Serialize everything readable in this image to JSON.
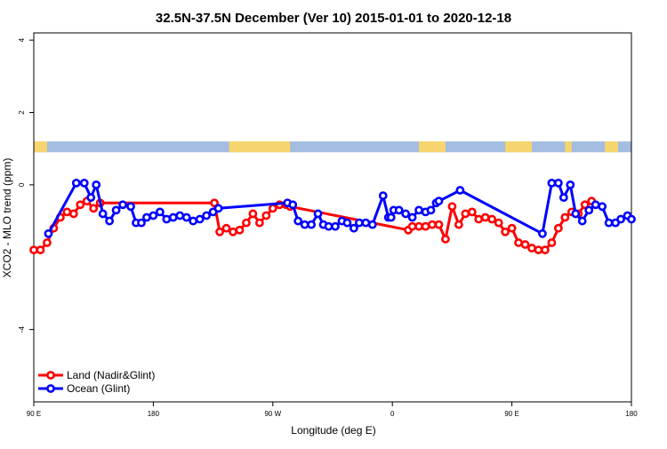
{
  "chart_data": {
    "type": "line",
    "title": "32.5N-37.5N December (Ver 10)   2015-01-01 to 2020-12-18",
    "xlabel": "Longitude (deg E)",
    "ylabel": "XCO2 - MLO trend (ppm)",
    "xlim": [
      90,
      540
    ],
    "ylim": [
      -6,
      4.2
    ],
    "xticks": [
      {
        "value": 90,
        "label": "90 E"
      },
      {
        "value": 180,
        "label": "180"
      },
      {
        "value": 270,
        "label": "90 W"
      },
      {
        "value": 360,
        "label": "0"
      },
      {
        "value": 450,
        "label": "90 E"
      },
      {
        "value": 540,
        "label": "180"
      }
    ],
    "yticks": [
      {
        "value": 4,
        "label": "4"
      },
      {
        "value": 2,
        "label": "2"
      },
      {
        "value": 0,
        "label": "0"
      },
      {
        "value": -4,
        "label": "-4"
      }
    ],
    "grid": false,
    "legend_position": "bottom-left",
    "land_strip": {
      "y_range": [
        0.9,
        1.2
      ],
      "ocean_color": "#a3bce0",
      "land_color": "#f7d56e",
      "land_segments": [
        [
          90,
          100
        ],
        [
          237,
          283
        ],
        [
          380,
          400
        ],
        [
          445,
          465
        ],
        [
          490,
          495
        ],
        [
          520,
          530
        ]
      ]
    },
    "series": [
      {
        "name": "Land (Nadir&Glint)",
        "color": "#ff0000",
        "x": [
          90,
          95,
          100,
          105,
          110,
          115,
          120,
          125,
          130,
          135,
          140,
          226,
          230,
          235,
          240,
          245,
          250,
          255,
          260,
          265,
          270,
          275,
          280,
          283,
          372,
          375,
          380,
          385,
          390,
          395,
          400,
          405,
          410,
          415,
          420,
          425,
          430,
          435,
          440,
          445,
          450,
          455,
          460,
          465,
          470,
          475,
          480,
          485,
          490,
          495,
          500,
          505,
          510
        ],
        "y": [
          -1.8,
          -1.8,
          -1.6,
          -1.2,
          -0.9,
          -0.75,
          -0.8,
          -0.55,
          -0.45,
          -0.65,
          -0.5,
          -0.5,
          -1.3,
          -1.2,
          -1.3,
          -1.25,
          -1.05,
          -0.8,
          -1.05,
          -0.85,
          -0.65,
          -0.55,
          -0.55,
          -0.6,
          -1.25,
          -1.15,
          -1.15,
          -1.15,
          -1.1,
          -1.1,
          -1.5,
          -0.6,
          -1.1,
          -0.8,
          -0.75,
          -0.95,
          -0.9,
          -0.95,
          -1.05,
          -1.3,
          -1.2,
          -1.6,
          -1.65,
          -1.75,
          -1.8,
          -1.8,
          -1.6,
          -1.2,
          -0.9,
          -0.75,
          -0.8,
          -0.55,
          -0.45
        ]
      },
      {
        "name": "Ocean (Glint)",
        "color": "#0000ff",
        "x": [
          101,
          122,
          128,
          133,
          137,
          142,
          147,
          152,
          157,
          163,
          167,
          171,
          175,
          180,
          185,
          190,
          195,
          200,
          205,
          210,
          215,
          220,
          225,
          229,
          281,
          285,
          289,
          294,
          299,
          304,
          308,
          312,
          317,
          322,
          326,
          331,
          335,
          340,
          345,
          353,
          357,
          359,
          361,
          365,
          370,
          375,
          380,
          385,
          389,
          393,
          395,
          411,
          473,
          480,
          485,
          489,
          494,
          498,
          503,
          508,
          513,
          518,
          523,
          528,
          532,
          537,
          540
        ],
        "y": [
          -1.35,
          0.05,
          0.05,
          -0.35,
          0.0,
          -0.8,
          -1.0,
          -0.7,
          -0.55,
          -0.6,
          -1.05,
          -1.05,
          -0.9,
          -0.85,
          -0.75,
          -0.95,
          -0.9,
          -0.85,
          -0.9,
          -1.0,
          -0.95,
          -0.85,
          -0.75,
          -0.65,
          -0.5,
          -0.55,
          -1.0,
          -1.1,
          -1.1,
          -0.8,
          -1.1,
          -1.15,
          -1.15,
          -1.0,
          -1.05,
          -1.2,
          -1.05,
          -1.05,
          -1.1,
          -0.3,
          -0.9,
          -0.9,
          -0.7,
          -0.7,
          -0.8,
          -0.9,
          -0.7,
          -0.75,
          -0.7,
          -0.5,
          -0.45,
          -0.15,
          -1.35,
          0.05,
          0.05,
          -0.35,
          0.0,
          -0.8,
          -1.0,
          -0.7,
          -0.55,
          -0.6,
          -1.05,
          -1.05,
          -0.95,
          -0.85,
          -0.95
        ]
      }
    ]
  }
}
